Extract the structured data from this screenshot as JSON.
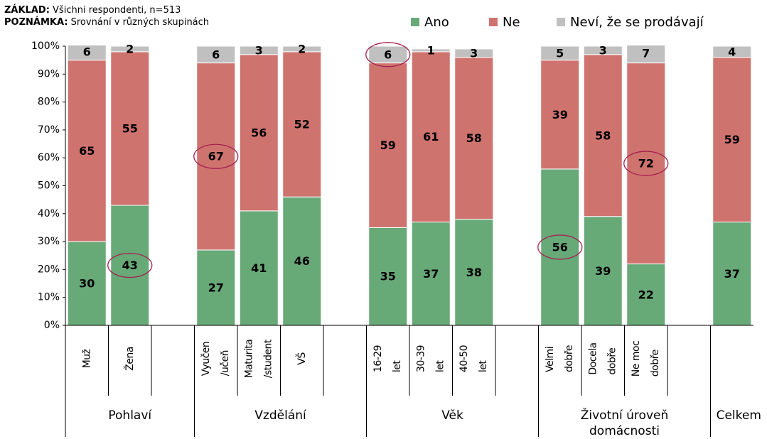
{
  "chart_data": {
    "type": "stacked_bar_100",
    "base_label": "ZÁKLAD:",
    "base": "Všichni respondenti, n=513",
    "note_label": "POZNÁMKA:",
    "note": "Srovnání v různých skupinách",
    "categories": [
      "Muž",
      "Žena",
      null,
      "Vyučen\n/učeň",
      "Maturita\n/student",
      "VŠ",
      null,
      "16-29\nlet",
      "30-39\nlet",
      "40-50\nlet",
      null,
      "Velmi\ndobře",
      "Docela\ndobře",
      "Ne moc\ndobře",
      null,
      null
    ],
    "groups": [
      "Pohlaví",
      "Vzdělání",
      "Věk",
      "Životní úroveň\ndomácnosti",
      "Celkem"
    ],
    "series": [
      {
        "name": "Ano",
        "color": "#68a978",
        "values": [
          30,
          43,
          null,
          27,
          41,
          46,
          null,
          35,
          37,
          38,
          null,
          56,
          39,
          22,
          null,
          37
        ]
      },
      {
        "name": "Ne",
        "color": "#cf736f",
        "values": [
          65,
          55,
          null,
          67,
          56,
          52,
          null,
          59,
          61,
          58,
          null,
          39,
          58,
          72,
          null,
          59
        ]
      },
      {
        "name": "Neví, že se prodávají",
        "color": "#c0c0c0",
        "values": [
          6,
          2,
          null,
          6,
          3,
          2,
          null,
          6,
          1,
          3,
          null,
          5,
          3,
          7,
          null,
          4
        ]
      }
    ],
    "ylim": [
      0,
      100
    ],
    "yticks": [
      {
        "value": 0,
        "label": "0%"
      },
      {
        "value": 10,
        "label": "10%"
      },
      {
        "value": 20,
        "label": "20%"
      },
      {
        "value": 30,
        "label": "30%"
      },
      {
        "value": 40,
        "label": "40%"
      },
      {
        "value": 50,
        "label": "50%"
      },
      {
        "value": 60,
        "label": "60%"
      },
      {
        "value": 70,
        "label": "70%"
      },
      {
        "value": 80,
        "label": "80%"
      },
      {
        "value": 90,
        "label": "90%"
      },
      {
        "value": 100,
        "label": "100%"
      }
    ],
    "legend": "top-right"
  }
}
